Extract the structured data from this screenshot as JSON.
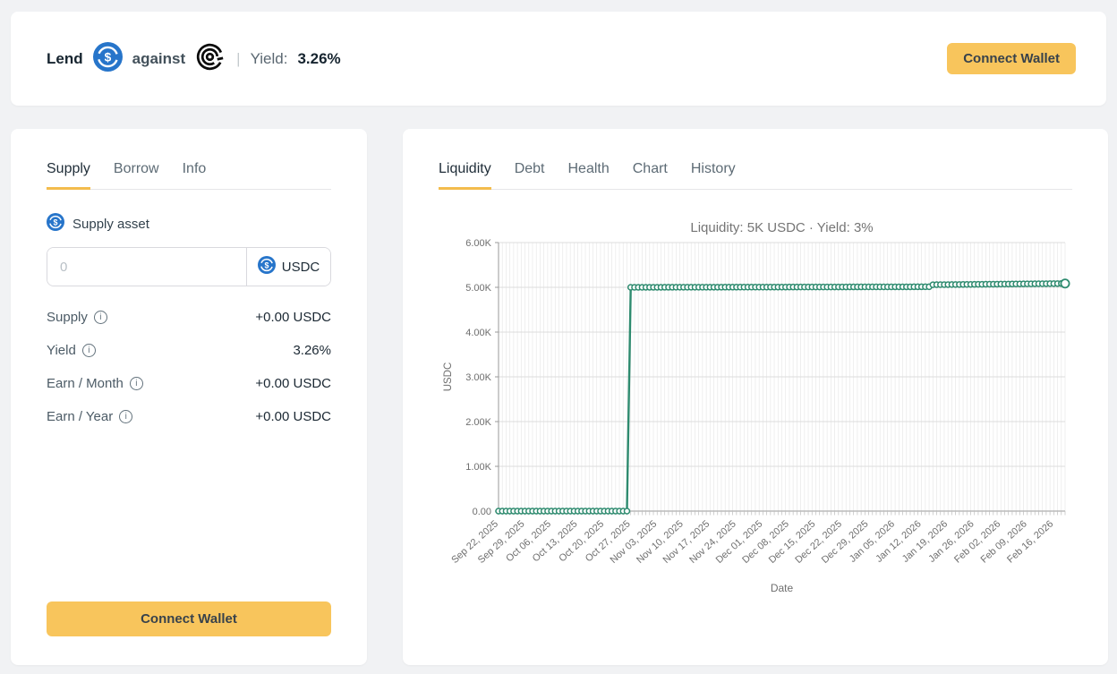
{
  "page": {
    "background": "#f1f2f4",
    "accent": "#f8c55c",
    "tab_underline": "#f3bc4d"
  },
  "icons": {
    "supply_token": "usdc-icon",
    "against_token": "spiral-token-icon",
    "info_glyph": "i",
    "usdc_blue": "#2775CA"
  },
  "header": {
    "lend_label": "Lend",
    "against_label": "against",
    "yield_separator": "|",
    "yield_label": "Yield:",
    "yield_value": "3.26%",
    "connect_wallet_label": "Connect Wallet"
  },
  "supply_panel": {
    "tabs": [
      {
        "label": "Supply",
        "active": true
      },
      {
        "label": "Borrow",
        "active": false
      },
      {
        "label": "Info",
        "active": false
      }
    ],
    "asset_label": "Supply asset",
    "input": {
      "value": "",
      "placeholder": "0",
      "token": "USDC"
    },
    "rows": [
      {
        "label": "Supply",
        "value": "+0.00 USDC"
      },
      {
        "label": "Yield",
        "value": "3.26%"
      },
      {
        "label": "Earn / Month",
        "value": "+0.00 USDC"
      },
      {
        "label": "Earn / Year",
        "value": "+0.00 USDC"
      }
    ],
    "connect_wallet_label": "Connect Wallet"
  },
  "chart_panel": {
    "tabs": [
      {
        "label": "Liquidity",
        "active": true
      },
      {
        "label": "Debt",
        "active": false
      },
      {
        "label": "Health",
        "active": false
      },
      {
        "label": "Chart",
        "active": false
      },
      {
        "label": "History",
        "active": false
      }
    ]
  },
  "chart_data": {
    "type": "line",
    "title": "Liquidity: 5K USDC · Yield: 3%",
    "xlabel": "Date",
    "ylabel": "USDC",
    "ylim": [
      0,
      6000
    ],
    "ytick_labels": [
      "0.00",
      "1.00K",
      "2.00K",
      "3.00K",
      "4.00K",
      "5.00K",
      "6.00K"
    ],
    "xtick_labels": [
      "Sep 22, 2025",
      "Sep 29, 2025",
      "Oct 06, 2025",
      "Oct 13, 2025",
      "Oct 20, 2025",
      "Oct 27, 2025",
      "Nov 03, 2025",
      "Nov 10, 2025",
      "Nov 17, 2025",
      "Nov 24, 2025",
      "Dec 01, 2025",
      "Dec 08, 2025",
      "Dec 15, 2025",
      "Dec 22, 2025",
      "Dec 29, 2025",
      "Jan 05, 2026",
      "Jan 12, 2026",
      "Jan 19, 2026",
      "Jan 26, 2026",
      "Feb 02, 2026",
      "Feb 09, 2026",
      "Feb 16, 2026"
    ],
    "xtick_interval_days": 7,
    "total_days": 150,
    "grid": true,
    "legend": "none",
    "line_color": "#2e8b6f",
    "series": [
      {
        "name": "Liquidity (USDC)",
        "marker": "circle",
        "breakpoints": [
          {
            "day": 0,
            "value": 0
          },
          {
            "day": 34,
            "value": 0
          },
          {
            "day": 35,
            "value": 5000
          },
          {
            "day": 114,
            "value": 5012
          },
          {
            "day": 115,
            "value": 5058
          },
          {
            "day": 150,
            "value": 5085
          }
        ]
      }
    ]
  }
}
